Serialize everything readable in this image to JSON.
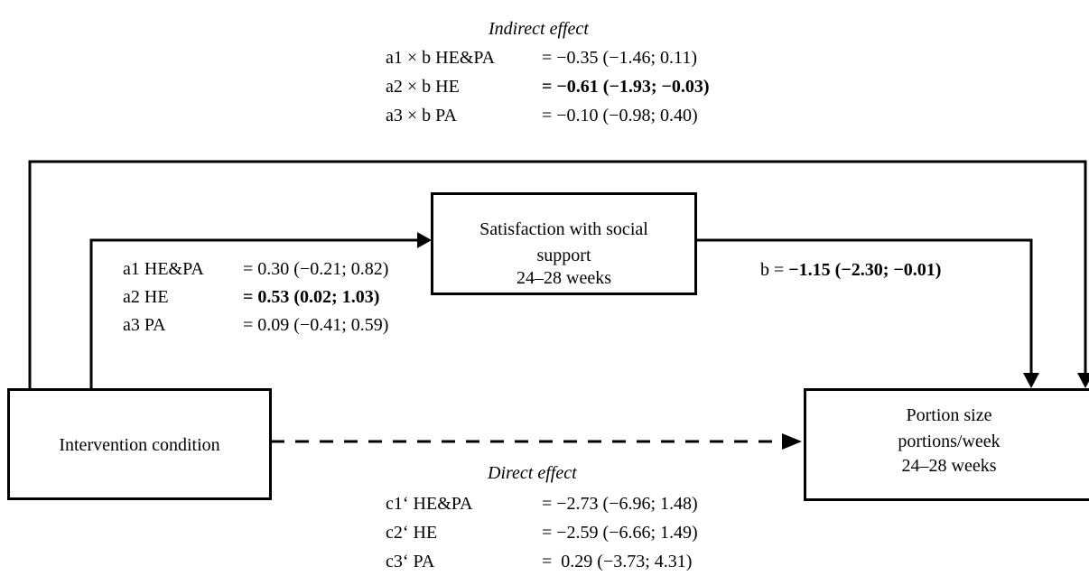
{
  "indirect": {
    "heading": "Indirect effect",
    "rows": [
      {
        "label": "a1 × b HE&PA",
        "value": "= −0.35 (−1.46; 0.11)",
        "bold": false
      },
      {
        "label": "a2 × b HE",
        "value": "= −0.61 (−1.93; −0.03)",
        "bold": true
      },
      {
        "label": "a3 × b PA",
        "value": "= −0.10 (−0.98; 0.40)",
        "bold": false
      }
    ]
  },
  "mediator_box": {
    "line1": "Satisfaction with social",
    "line2": "support",
    "line3": "24–28 weeks"
  },
  "intervention_box": {
    "label": "Intervention condition"
  },
  "outcome_box": {
    "line1": "Portion size",
    "line2": "portions/week",
    "line3": "24–28 weeks"
  },
  "a_paths": [
    {
      "label": "a1 HE&PA",
      "value": "= 0.30 (−0.21; 0.82)",
      "bold": false
    },
    {
      "label": "a2 HE",
      "value": "= 0.53 (0.02; 1.03)",
      "bold": true
    },
    {
      "label": "a3 PA",
      "value": "= 0.09 (−0.41; 0.59)",
      "bold": false
    }
  ],
  "b_path": {
    "label": "b =",
    "value": "−1.15 (−2.30; −0.01)"
  },
  "direct": {
    "heading": "Direct effect",
    "rows": [
      {
        "label": "c1‘ HE&PA",
        "value": "= −2.73 (−6.96; 1.48)"
      },
      {
        "label": "c2‘ HE",
        "value": "= −2.59 (−6.66; 1.49)"
      },
      {
        "label": "c3‘ PA",
        "value": "=  0.29 (−3.73; 4.31)"
      }
    ]
  }
}
